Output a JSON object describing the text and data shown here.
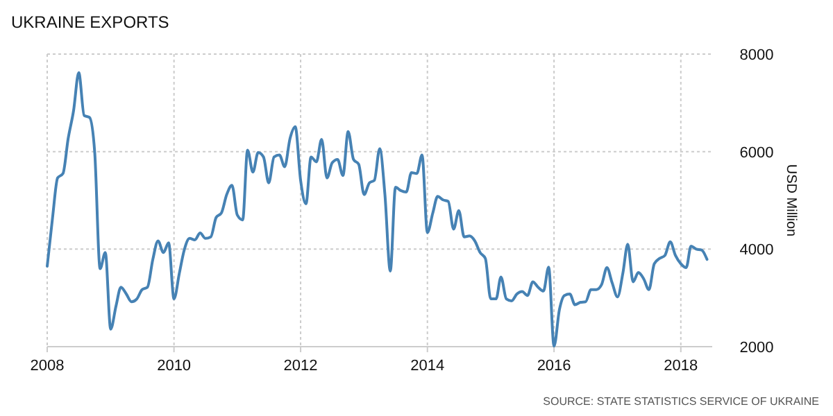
{
  "chart_data": {
    "type": "line",
    "title": "UKRAINE EXPORTS",
    "ylabel": "USD Million",
    "annotations": [
      "SOURCE: STATE STATISTICS SERVICE OF UKRAINE"
    ],
    "x": [
      "2008-01",
      "2008-02",
      "2008-03",
      "2008-04",
      "2008-05",
      "2008-06",
      "2008-07",
      "2008-08",
      "2008-09",
      "2008-10",
      "2008-11",
      "2008-12",
      "2009-01",
      "2009-02",
      "2009-03",
      "2009-04",
      "2009-05",
      "2009-06",
      "2009-07",
      "2009-08",
      "2009-09",
      "2009-10",
      "2009-11",
      "2009-12",
      "2010-01",
      "2010-02",
      "2010-03",
      "2010-04",
      "2010-05",
      "2010-06",
      "2010-07",
      "2010-08",
      "2010-09",
      "2010-10",
      "2010-11",
      "2010-12",
      "2011-01",
      "2011-02",
      "2011-03",
      "2011-04",
      "2011-05",
      "2011-06",
      "2011-07",
      "2011-08",
      "2011-09",
      "2011-10",
      "2011-11",
      "2011-12",
      "2012-01",
      "2012-02",
      "2012-03",
      "2012-04",
      "2012-05",
      "2012-06",
      "2012-07",
      "2012-08",
      "2012-09",
      "2012-10",
      "2012-11",
      "2012-12",
      "2013-01",
      "2013-02",
      "2013-03",
      "2013-04",
      "2013-05",
      "2013-06",
      "2013-07",
      "2013-08",
      "2013-09",
      "2013-10",
      "2013-11",
      "2013-12",
      "2014-01",
      "2014-02",
      "2014-03",
      "2014-04",
      "2014-05",
      "2014-06",
      "2014-07",
      "2014-08",
      "2014-09",
      "2014-10",
      "2014-11",
      "2014-12",
      "2015-01",
      "2015-02",
      "2015-03",
      "2015-04",
      "2015-05",
      "2015-06",
      "2015-07",
      "2015-08",
      "2015-09",
      "2015-10",
      "2015-11",
      "2015-12",
      "2016-01",
      "2016-02",
      "2016-03",
      "2016-04",
      "2016-05",
      "2016-06",
      "2016-07",
      "2016-08",
      "2016-09",
      "2016-10",
      "2016-11",
      "2016-12",
      "2017-01",
      "2017-02",
      "2017-03",
      "2017-04",
      "2017-05",
      "2017-06",
      "2017-07",
      "2017-08",
      "2017-09",
      "2017-10",
      "2017-11",
      "2017-12",
      "2018-01",
      "2018-02",
      "2018-03",
      "2018-04",
      "2018-05",
      "2018-06"
    ],
    "series": [
      {
        "color": "#4682b4",
        "values": [
          3650,
          4650,
          5460,
          5550,
          6270,
          6840,
          7620,
          6740,
          6700,
          5980,
          3600,
          3930,
          2360,
          2840,
          3220,
          3080,
          2920,
          2980,
          3170,
          3220,
          3790,
          4170,
          3930,
          4130,
          2980,
          3510,
          3980,
          4220,
          4190,
          4330,
          4220,
          4250,
          4650,
          4740,
          5120,
          5310,
          4700,
          4600,
          6030,
          5580,
          5980,
          5890,
          5360,
          5890,
          5930,
          5690,
          6270,
          6510,
          5410,
          4930,
          5890,
          5790,
          6250,
          5460,
          5770,
          5840,
          5510,
          6410,
          5840,
          5740,
          5120,
          5360,
          5410,
          6060,
          5120,
          3550,
          5270,
          5200,
          5170,
          5570,
          5550,
          5930,
          4340,
          4740,
          5080,
          5010,
          4980,
          4410,
          4790,
          4250,
          4270,
          4170,
          3930,
          3810,
          2980,
          2980,
          3430,
          2980,
          2940,
          3080,
          3130,
          3050,
          3330,
          3220,
          3140,
          3630,
          2010,
          2760,
          3050,
          3080,
          2860,
          2910,
          2920,
          3170,
          3170,
          3270,
          3620,
          3310,
          3020,
          3510,
          4100,
          3330,
          3520,
          3390,
          3170,
          3700,
          3810,
          3870,
          4150,
          3870,
          3700,
          3620,
          4060,
          4000,
          3980,
          3790
        ]
      }
    ],
    "xlim": [
      "2008-01",
      "2018-07"
    ],
    "xticks": [
      {
        "value": "2008-01",
        "label": "2008"
      },
      {
        "value": "2010-01",
        "label": "2010"
      },
      {
        "value": "2012-01",
        "label": "2012"
      },
      {
        "value": "2014-01",
        "label": "2014"
      },
      {
        "value": "2016-01",
        "label": "2016"
      },
      {
        "value": "2018-01",
        "label": "2018"
      }
    ],
    "ylim": [
      2000,
      8000
    ],
    "yticks": [
      2000,
      4000,
      6000,
      8000
    ],
    "grid": true,
    "marker": "none",
    "line_style": "solid"
  }
}
